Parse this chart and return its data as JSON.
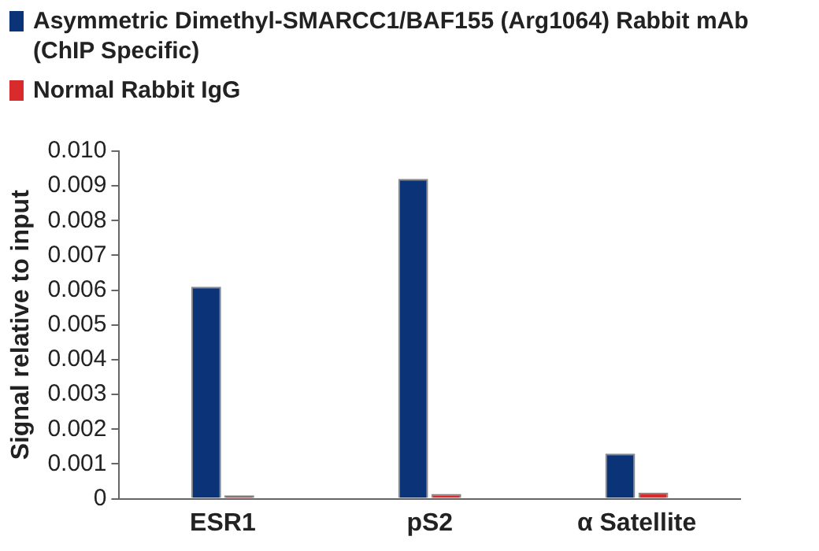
{
  "chart_data": {
    "type": "bar",
    "ylabel": "Signal relative to input",
    "categories": [
      "ESR1",
      "pS2",
      "α Satellite"
    ],
    "series": [
      {
        "name": "Asymmetric Dimethyl-SMARCC1/BAF155 (Arg1064) Rabbit mAb (ChIP Specific)",
        "color": "#0b3378",
        "values": [
          0.0061,
          0.0092,
          0.0013
        ]
      },
      {
        "name": "Normal Rabbit IgG",
        "color": "#d92b2b",
        "values": [
          0.0001,
          0.00014,
          0.00017
        ]
      }
    ],
    "ylim": [
      0,
      0.01
    ],
    "yticks": [
      0,
      0.001,
      0.002,
      0.003,
      0.004,
      0.005,
      0.006,
      0.007,
      0.008,
      0.009,
      {
        "value": 0.01,
        "label": "0.010"
      }
    ],
    "grid": false,
    "legend": "top left"
  }
}
